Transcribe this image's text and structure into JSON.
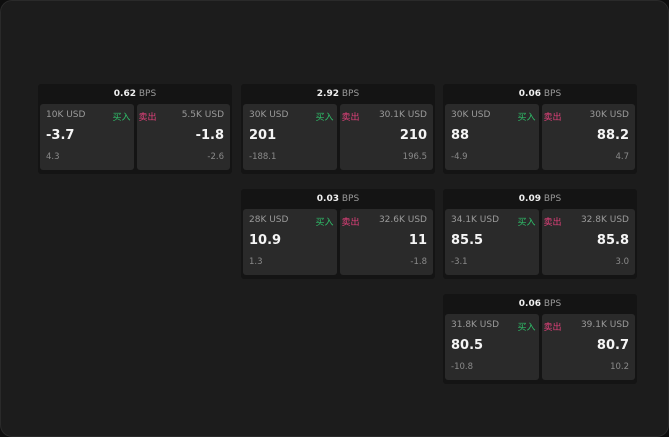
{
  "colors": {
    "buy": "#2fbf6a",
    "sell": "#e0407a"
  },
  "unit": "BPS",
  "buy_label": "买入",
  "sell_label": "卖出",
  "cards": [
    {
      "spread": "0.62",
      "buy": {
        "qty": "10K USD",
        "price": "-3.7",
        "change": "4.3"
      },
      "sell": {
        "qty": "5.5K USD",
        "price": "-1.8",
        "change": "-2.6"
      }
    },
    {
      "spread": "2.92",
      "buy": {
        "qty": "30K USD",
        "price": "201",
        "change": "-188.1"
      },
      "sell": {
        "qty": "30.1K USD",
        "price": "210",
        "change": "196.5"
      }
    },
    {
      "spread": "0.06",
      "buy": {
        "qty": "30K USD",
        "price": "88",
        "change": "-4.9"
      },
      "sell": {
        "qty": "30K USD",
        "price": "88.2",
        "change": "4.7"
      }
    },
    {
      "spread": "0.03",
      "buy": {
        "qty": "28K USD",
        "price": "10.9",
        "change": "1.3"
      },
      "sell": {
        "qty": "32.6K USD",
        "price": "11",
        "change": "-1.8"
      }
    },
    {
      "spread": "0.09",
      "buy": {
        "qty": "34.1K USD",
        "price": "85.5",
        "change": "-3.1"
      },
      "sell": {
        "qty": "32.8K USD",
        "price": "85.8",
        "change": "3.0"
      }
    },
    {
      "spread": "0.06",
      "buy": {
        "qty": "31.8K USD",
        "price": "80.5",
        "change": "-10.8"
      },
      "sell": {
        "qty": "39.1K USD",
        "price": "80.7",
        "change": "10.2"
      }
    }
  ]
}
